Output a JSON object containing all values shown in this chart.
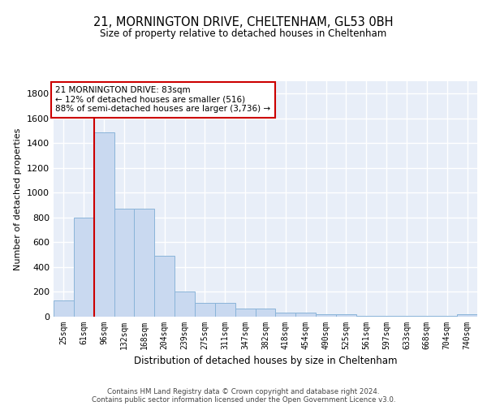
{
  "title": "21, MORNINGTON DRIVE, CHELTENHAM, GL53 0BH",
  "subtitle": "Size of property relative to detached houses in Cheltenham",
  "xlabel": "Distribution of detached houses by size in Cheltenham",
  "ylabel": "Number of detached properties",
  "bar_color": "#c9d9f0",
  "bar_edgecolor": "#8ab4d9",
  "background_color": "#e8eef8",
  "grid_color": "white",
  "annotation_box_color": "#cc0000",
  "annotation_line_color": "#cc0000",
  "annotation_text": "21 MORNINGTON DRIVE: 83sqm\n← 12% of detached houses are smaller (516)\n88% of semi-detached houses are larger (3,736) →",
  "footer": "Contains HM Land Registry data © Crown copyright and database right 2024.\nContains public sector information licensed under the Open Government Licence v3.0.",
  "bin_labels": [
    "25sqm",
    "61sqm",
    "96sqm",
    "132sqm",
    "168sqm",
    "204sqm",
    "239sqm",
    "275sqm",
    "311sqm",
    "347sqm",
    "382sqm",
    "418sqm",
    "454sqm",
    "490sqm",
    "525sqm",
    "561sqm",
    "597sqm",
    "633sqm",
    "668sqm",
    "704sqm",
    "740sqm"
  ],
  "bar_heights": [
    130,
    800,
    1490,
    870,
    870,
    490,
    205,
    110,
    110,
    68,
    68,
    32,
    32,
    22,
    22,
    8,
    8,
    4,
    4,
    4,
    18
  ],
  "red_line_x": 1.5,
  "ylim": [
    0,
    1900
  ],
  "yticks": [
    0,
    200,
    400,
    600,
    800,
    1000,
    1200,
    1400,
    1600,
    1800
  ],
  "figsize": [
    6.0,
    5.0
  ],
  "dpi": 100
}
